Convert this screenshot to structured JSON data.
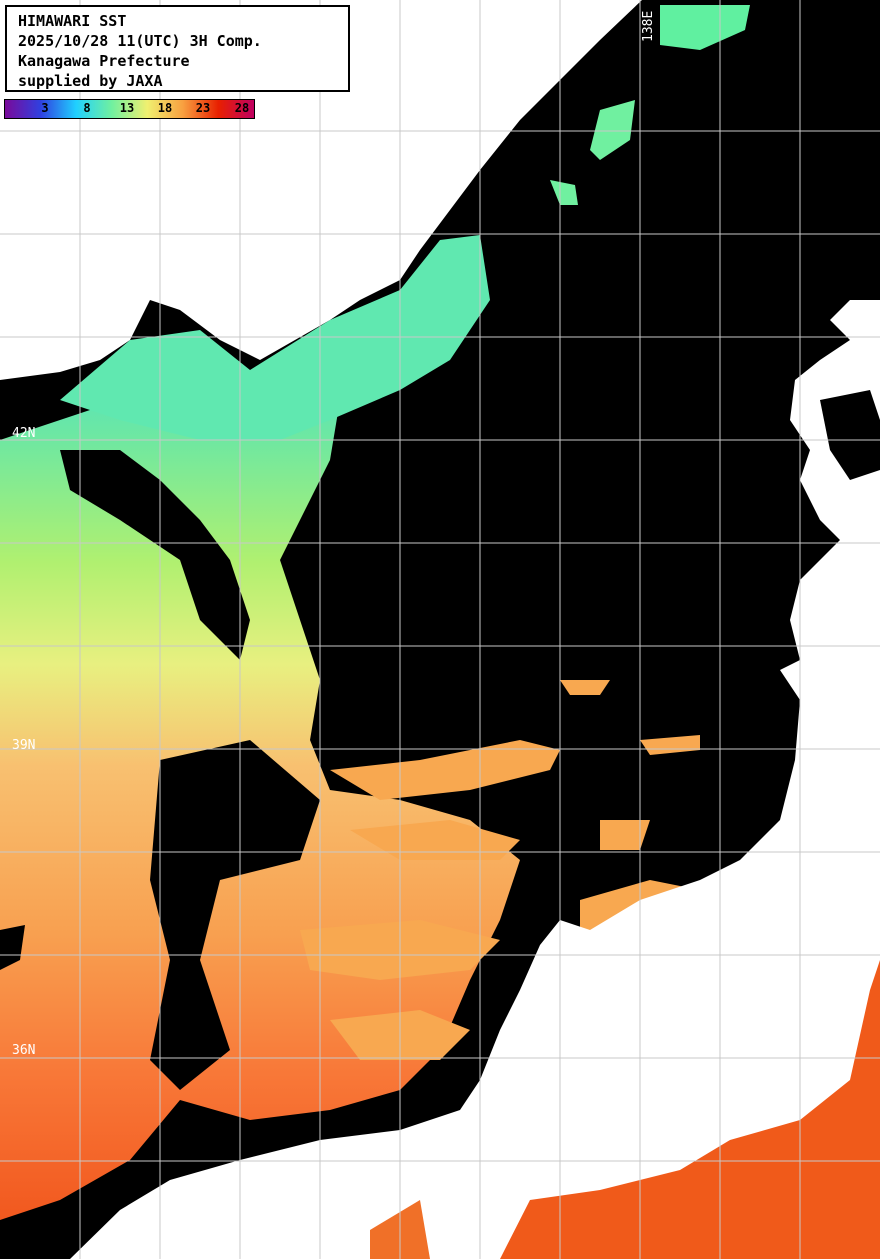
{
  "title": {
    "lines": [
      "HIMAWARI SST",
      "2025/10/28 11(UTC) 3H Comp.",
      "Kanagawa Prefecture",
      "supplied by JAXA"
    ]
  },
  "colorbar": {
    "ticks": [
      "3",
      "8",
      "13",
      "18",
      "23",
      "28"
    ],
    "colors": [
      "#7a0a9a",
      "#3040e0",
      "#20d0ff",
      "#70f0a0",
      "#f0f070",
      "#f8a040",
      "#e82000",
      "#c00060"
    ]
  },
  "grid": {
    "lat_labels": [
      "42N",
      "39N",
      "36N"
    ],
    "lon_labels": [
      "138E"
    ]
  },
  "colors": {
    "sea_no_data": "#000000",
    "land": "#ffffff",
    "grid": "#c8c8c8"
  }
}
